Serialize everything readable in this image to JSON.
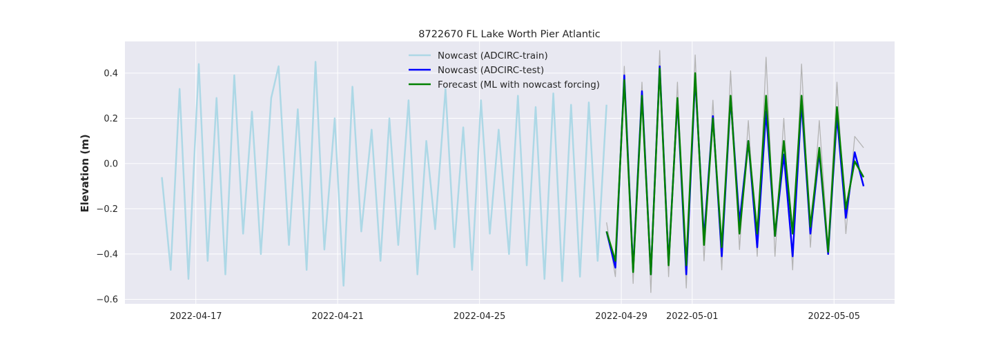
{
  "chart_data": {
    "type": "line",
    "title": "8722670 FL Lake Worth Pier Atlantic",
    "xlabel": "",
    "ylabel": "Elevation (m)",
    "xlim": [
      "2022-04-15T00:00",
      "2022-05-06T17:00"
    ],
    "ylim": [
      -0.62,
      0.54
    ],
    "x_ticks": [
      "2022-04-17",
      "2022-04-21",
      "2022-04-25",
      "2022-04-29",
      "2022-05-01",
      "2022-05-05"
    ],
    "y_ticks": [
      -0.6,
      -0.4,
      -0.2,
      0.0,
      0.2,
      0.4
    ],
    "y_tick_labels": [
      "−0.6",
      "−0.4",
      "−0.2",
      "0.0",
      "0.2",
      "0.4"
    ],
    "grid": true,
    "legend_position": "top-center",
    "background_color": "#e8e8f1",
    "series": [
      {
        "name": "Nowcast (ADCIRC-train)",
        "color": "#add8e6",
        "x": [
          "2022-04-16T01:00",
          "2022-04-16T07:00",
          "2022-04-16T13:00",
          "2022-04-16T19:00",
          "2022-04-17T02:00",
          "2022-04-17T08:00",
          "2022-04-17T14:00",
          "2022-04-17T20:00",
          "2022-04-18T02:00",
          "2022-04-18T08:00",
          "2022-04-18T14:00",
          "2022-04-18T20:00",
          "2022-04-19T03:00",
          "2022-04-19T08:00",
          "2022-04-19T15:00",
          "2022-04-19T21:00",
          "2022-04-20T03:00",
          "2022-04-20T09:00",
          "2022-04-20T15:00",
          "2022-04-20T22:00",
          "2022-04-21T04:00",
          "2022-04-21T10:00",
          "2022-04-21T16:00",
          "2022-04-21T23:00",
          "2022-04-22T05:00",
          "2022-04-22T11:00",
          "2022-04-22T17:00",
          "2022-04-23T00:00",
          "2022-04-23T06:00",
          "2022-04-23T12:00",
          "2022-04-23T18:00",
          "2022-04-24T01:00",
          "2022-04-24T07:00",
          "2022-04-24T13:00",
          "2022-04-24T19:00",
          "2022-04-25T01:00",
          "2022-04-25T07:00",
          "2022-04-25T13:00",
          "2022-04-25T20:00",
          "2022-04-26T02:00",
          "2022-04-26T08:00",
          "2022-04-26T14:00",
          "2022-04-26T20:00",
          "2022-04-27T02:00",
          "2022-04-27T08:00",
          "2022-04-27T14:00",
          "2022-04-27T20:00",
          "2022-04-28T02:00",
          "2022-04-28T08:00",
          "2022-04-28T14:00"
        ],
        "values": [
          -0.06,
          -0.47,
          0.33,
          -0.51,
          0.44,
          -0.43,
          0.29,
          -0.49,
          0.39,
          -0.31,
          0.23,
          -0.4,
          0.29,
          0.43,
          -0.36,
          0.24,
          -0.47,
          0.45,
          -0.38,
          0.2,
          -0.54,
          0.34,
          -0.3,
          0.15,
          -0.43,
          0.2,
          -0.36,
          0.28,
          -0.49,
          0.1,
          -0.29,
          0.33,
          -0.37,
          0.16,
          -0.47,
          0.28,
          -0.31,
          0.15,
          -0.4,
          0.3,
          -0.45,
          0.25,
          -0.51,
          0.31,
          -0.52,
          0.26,
          -0.5,
          0.27,
          -0.43,
          0.26
        ]
      },
      {
        "name": "Nowcast (ADCIRC-test)",
        "color": "#0000ff",
        "x": [
          "2022-04-28T14:00",
          "2022-04-28T20:00",
          "2022-04-29T02:00",
          "2022-04-29T08:00",
          "2022-04-29T14:00",
          "2022-04-29T20:00",
          "2022-04-30T02:00",
          "2022-04-30T08:00",
          "2022-04-30T14:00",
          "2022-04-30T20:00",
          "2022-05-01T02:00",
          "2022-05-01T08:00",
          "2022-05-01T14:00",
          "2022-05-01T20:00",
          "2022-05-02T02:00",
          "2022-05-02T08:00",
          "2022-05-02T14:00",
          "2022-05-02T20:00",
          "2022-05-03T02:00",
          "2022-05-03T08:00",
          "2022-05-03T14:00",
          "2022-05-03T20:00",
          "2022-05-04T02:00",
          "2022-05-04T08:00",
          "2022-05-04T14:00",
          "2022-05-04T20:00",
          "2022-05-05T02:00",
          "2022-05-05T08:00",
          "2022-05-05T14:00",
          "2022-05-05T20:00"
        ],
        "values": [
          -0.3,
          -0.46,
          0.39,
          -0.47,
          0.32,
          -0.49,
          0.43,
          -0.44,
          0.28,
          -0.49,
          0.38,
          -0.33,
          0.21,
          -0.41,
          0.29,
          -0.26,
          0.1,
          -0.37,
          0.23,
          -0.32,
          0.04,
          -0.41,
          0.27,
          -0.31,
          0.05,
          -0.4,
          0.21,
          -0.24,
          0.05,
          -0.1
        ]
      },
      {
        "name": "Forecast (ML with nowcast forcing)",
        "color": "#008000",
        "x": [
          "2022-04-28T14:00",
          "2022-04-28T20:00",
          "2022-04-29T02:00",
          "2022-04-29T08:00",
          "2022-04-29T14:00",
          "2022-04-29T20:00",
          "2022-04-30T02:00",
          "2022-04-30T08:00",
          "2022-04-30T14:00",
          "2022-04-30T20:00",
          "2022-05-01T02:00",
          "2022-05-01T08:00",
          "2022-05-01T14:00",
          "2022-05-01T20:00",
          "2022-05-02T02:00",
          "2022-05-02T08:00",
          "2022-05-02T14:00",
          "2022-05-02T20:00",
          "2022-05-03T02:00",
          "2022-05-03T08:00",
          "2022-05-03T14:00",
          "2022-05-03T20:00",
          "2022-05-04T02:00",
          "2022-05-04T08:00",
          "2022-05-04T14:00",
          "2022-05-04T20:00",
          "2022-05-05T02:00",
          "2022-05-05T08:00",
          "2022-05-05T14:00",
          "2022-05-05T20:00"
        ],
        "values": [
          -0.3,
          -0.43,
          0.37,
          -0.48,
          0.3,
          -0.49,
          0.42,
          -0.45,
          0.29,
          -0.45,
          0.4,
          -0.36,
          0.2,
          -0.37,
          0.3,
          -0.31,
          0.1,
          -0.31,
          0.3,
          -0.32,
          0.1,
          -0.31,
          0.3,
          -0.28,
          0.07,
          -0.39,
          0.25,
          -0.2,
          0.01,
          -0.06
        ]
      },
      {
        "name": "",
        "color": "#b3b3b3",
        "x": [
          "2022-04-28T14:00",
          "2022-04-28T20:00",
          "2022-04-29T02:00",
          "2022-04-29T08:00",
          "2022-04-29T14:00",
          "2022-04-29T20:00",
          "2022-04-30T02:00",
          "2022-04-30T08:00",
          "2022-04-30T14:00",
          "2022-04-30T20:00",
          "2022-05-01T02:00",
          "2022-05-01T08:00",
          "2022-05-01T14:00",
          "2022-05-01T20:00",
          "2022-05-02T02:00",
          "2022-05-02T08:00",
          "2022-05-02T14:00",
          "2022-05-02T20:00",
          "2022-05-03T02:00",
          "2022-05-03T08:00",
          "2022-05-03T14:00",
          "2022-05-03T20:00",
          "2022-05-04T02:00",
          "2022-05-04T08:00",
          "2022-05-04T14:00",
          "2022-05-04T20:00",
          "2022-05-05T02:00",
          "2022-05-05T08:00",
          "2022-05-05T14:00",
          "2022-05-05T20:00"
        ],
        "values": [
          -0.26,
          -0.5,
          0.43,
          -0.53,
          0.36,
          -0.57,
          0.5,
          -0.5,
          0.36,
          -0.55,
          0.48,
          -0.43,
          0.28,
          -0.47,
          0.41,
          -0.38,
          0.19,
          -0.41,
          0.47,
          -0.41,
          0.2,
          -0.47,
          0.44,
          -0.37,
          0.19,
          -0.37,
          0.36,
          -0.31,
          0.12,
          0.07
        ]
      }
    ]
  }
}
